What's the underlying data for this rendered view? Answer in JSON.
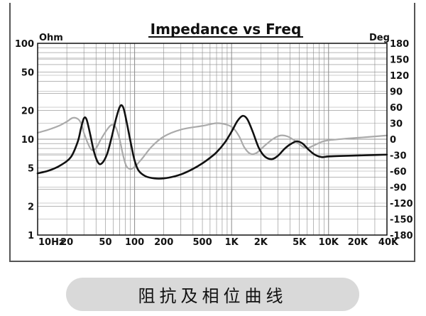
{
  "chart_data": {
    "type": "line",
    "title": "Impedance vs Freq",
    "ylabel_left": "Ohm",
    "ylabel_right": "Deg",
    "x_scale": "log",
    "y_left_scale": "log",
    "xlim": [
      10,
      40000
    ],
    "ylim_left": [
      1,
      100
    ],
    "ylim_right": [
      -180,
      180
    ],
    "x_ticks": [
      {
        "value": 10,
        "label": "10Hz"
      },
      {
        "value": 20,
        "label": "20"
      },
      {
        "value": 50,
        "label": "50"
      },
      {
        "value": 100,
        "label": "100"
      },
      {
        "value": 200,
        "label": "200"
      },
      {
        "value": 500,
        "label": "500"
      },
      {
        "value": 1000,
        "label": "1K"
      },
      {
        "value": 2000,
        "label": "2K"
      },
      {
        "value": 5000,
        "label": "5K"
      },
      {
        "value": 10000,
        "label": "10K"
      },
      {
        "value": 20000,
        "label": "20K"
      },
      {
        "value": 40000,
        "label": "40K"
      }
    ],
    "y_left_ticks": [
      {
        "value": 100,
        "label": "100"
      },
      {
        "value": 50,
        "label": "50"
      },
      {
        "value": 20,
        "label": "20"
      },
      {
        "value": 10,
        "label": "10"
      },
      {
        "value": 5,
        "label": "5"
      },
      {
        "value": 2,
        "label": "2"
      },
      {
        "value": 1,
        "label": "1"
      }
    ],
    "y_right_ticks": [
      {
        "value": 180,
        "label": "180"
      },
      {
        "value": 150,
        "label": "150"
      },
      {
        "value": 120,
        "label": "120"
      },
      {
        "value": 90,
        "label": "90"
      },
      {
        "value": 60,
        "label": "60"
      },
      {
        "value": 30,
        "label": "30"
      },
      {
        "value": 0,
        "label": "0"
      },
      {
        "value": -30,
        "label": "-30"
      },
      {
        "value": -60,
        "label": "-60"
      },
      {
        "value": -90,
        "label": "-90"
      },
      {
        "value": -120,
        "label": "-120"
      },
      {
        "value": -150,
        "label": "-150"
      },
      {
        "value": -180,
        "label": "-180"
      }
    ],
    "grid": true,
    "series": [
      {
        "axis": "left",
        "color": "#111111",
        "points": [
          [
            10,
            4.4
          ],
          [
            13,
            4.7
          ],
          [
            17,
            5.3
          ],
          [
            22,
            6.5
          ],
          [
            26,
            9.5
          ],
          [
            28,
            13
          ],
          [
            30,
            16.5
          ],
          [
            32,
            16
          ],
          [
            35,
            11
          ],
          [
            38,
            7.5
          ],
          [
            42,
            5.7
          ],
          [
            46,
            5.6
          ],
          [
            52,
            7
          ],
          [
            58,
            10.5
          ],
          [
            64,
            16
          ],
          [
            70,
            21.5
          ],
          [
            74,
            22.5
          ],
          [
            78,
            20
          ],
          [
            84,
            14
          ],
          [
            92,
            8.8
          ],
          [
            100,
            6
          ],
          [
            110,
            4.7
          ],
          [
            130,
            4.1
          ],
          [
            160,
            3.9
          ],
          [
            200,
            3.9
          ],
          [
            260,
            4.1
          ],
          [
            320,
            4.4
          ],
          [
            400,
            4.9
          ],
          [
            500,
            5.6
          ],
          [
            600,
            6.4
          ],
          [
            700,
            7.3
          ],
          [
            850,
            9.2
          ],
          [
            1000,
            12
          ],
          [
            1150,
            15.5
          ],
          [
            1300,
            17.5
          ],
          [
            1450,
            16.2
          ],
          [
            1650,
            12
          ],
          [
            1900,
            8.2
          ],
          [
            2200,
            6.6
          ],
          [
            2600,
            6.2
          ],
          [
            3000,
            6.7
          ],
          [
            3500,
            7.9
          ],
          [
            4000,
            8.8
          ],
          [
            4700,
            9.5
          ],
          [
            5400,
            9
          ],
          [
            6200,
            7.8
          ],
          [
            7200,
            6.9
          ],
          [
            8500,
            6.5
          ],
          [
            10000,
            6.6
          ],
          [
            15000,
            6.7
          ],
          [
            25000,
            6.8
          ],
          [
            40000,
            6.9
          ]
        ]
      },
      {
        "axis": "right",
        "color": "#aaaaaa",
        "points": [
          [
            10,
            12
          ],
          [
            13,
            18
          ],
          [
            17,
            26
          ],
          [
            20,
            33
          ],
          [
            23,
            40
          ],
          [
            26,
            38
          ],
          [
            28,
            30
          ],
          [
            30,
            12
          ],
          [
            33,
            -8
          ],
          [
            36,
            -20
          ],
          [
            40,
            -17
          ],
          [
            45,
            0
          ],
          [
            52,
            18
          ],
          [
            58,
            27
          ],
          [
            64,
            22
          ],
          [
            70,
            0
          ],
          [
            76,
            -30
          ],
          [
            82,
            -50
          ],
          [
            90,
            -56
          ],
          [
            100,
            -52
          ],
          [
            120,
            -36
          ],
          [
            150,
            -14
          ],
          [
            200,
            5
          ],
          [
            300,
            18
          ],
          [
            500,
            25
          ],
          [
            700,
            30
          ],
          [
            900,
            27
          ],
          [
            1050,
            20
          ],
          [
            1200,
            5
          ],
          [
            1350,
            -15
          ],
          [
            1550,
            -27
          ],
          [
            1800,
            -26
          ],
          [
            2200,
            -12
          ],
          [
            2700,
            1
          ],
          [
            3200,
            7
          ],
          [
            3800,
            5
          ],
          [
            4500,
            -3
          ],
          [
            5300,
            -13
          ],
          [
            6000,
            -17
          ],
          [
            7000,
            -12
          ],
          [
            8500,
            -5
          ],
          [
            10000,
            -2
          ],
          [
            15000,
            1
          ],
          [
            25000,
            4
          ],
          [
            40000,
            7
          ]
        ]
      }
    ]
  },
  "caption": "阻抗及相位曲线"
}
